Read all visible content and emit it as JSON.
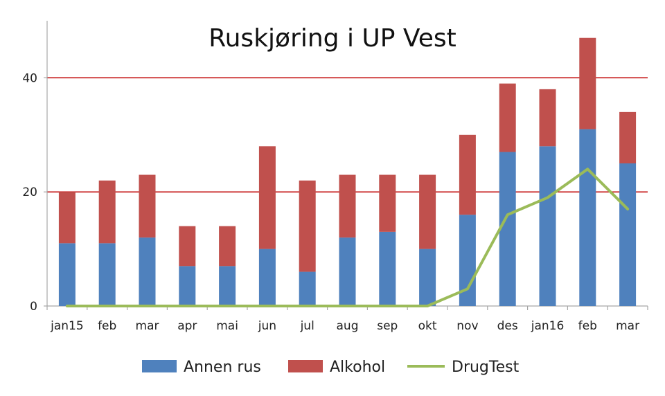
{
  "chart_data": {
    "type": "bar",
    "stacked": true,
    "title": "Ruskjøring i UP Vest",
    "xlabel": "",
    "ylabel": "",
    "categories": [
      "jan15",
      "feb",
      "mar",
      "apr",
      "mai",
      "jun",
      "jul",
      "aug",
      "sep",
      "okt",
      "nov",
      "des",
      "jan16",
      "feb",
      "mar"
    ],
    "ylim": [
      0,
      50
    ],
    "yticks": [
      0,
      20,
      40
    ],
    "grid": "major-y",
    "legend": "bottom",
    "series": [
      {
        "name": "Annen rus",
        "kind": "bar",
        "color": "#4F81BD",
        "values": [
          11,
          11,
          12,
          7,
          7,
          10,
          6,
          12,
          13,
          10,
          16,
          27,
          28,
          31,
          25
        ]
      },
      {
        "name": "Alkohol",
        "kind": "bar",
        "color": "#C0504D",
        "values": [
          9,
          11,
          11,
          7,
          7,
          18,
          16,
          11,
          10,
          13,
          14,
          12,
          10,
          16,
          9
        ]
      },
      {
        "name": "DrugTest",
        "kind": "line",
        "color": "#9BBB59",
        "values": [
          0,
          0,
          0,
          0,
          0,
          0,
          0,
          0,
          0,
          0,
          3,
          16,
          19,
          24,
          17
        ]
      }
    ],
    "gridline_color": "#C00000",
    "axis_color": "#A6A6A6"
  }
}
